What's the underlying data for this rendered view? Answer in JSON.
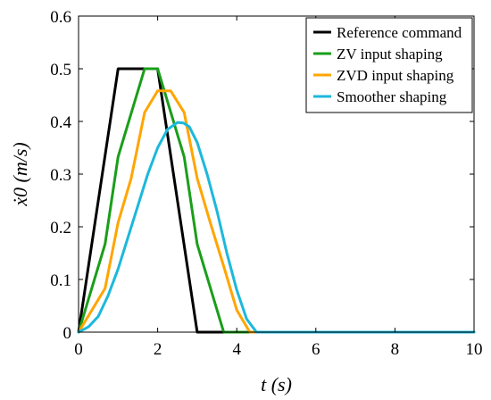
{
  "chart_data": {
    "type": "line",
    "title": "",
    "xlabel": "t (s)",
    "ylabel": "ẋ0 (m/s)",
    "xlim": [
      0,
      10
    ],
    "ylim": [
      0,
      0.6
    ],
    "xticks": [
      "0",
      "2",
      "4",
      "6",
      "8",
      "10"
    ],
    "yticks": [
      "0",
      "0.1",
      "0.2",
      "0.3",
      "0.4",
      "0.5",
      "0.6"
    ],
    "grid": false,
    "legend_position": "top-right",
    "series": [
      {
        "name": "Reference command",
        "color": "#000000",
        "x": [
          0,
          1.0,
          2.0,
          3.0,
          10
        ],
        "y": [
          0,
          0.5,
          0.5,
          0,
          0
        ]
      },
      {
        "name": "ZV input shaping",
        "color": "#1a9e1a",
        "x": [
          0,
          0.67,
          1.0,
          1.67,
          2.0,
          2.67,
          3.0,
          3.67,
          10
        ],
        "y": [
          0,
          0.167,
          0.333,
          0.5,
          0.5,
          0.333,
          0.167,
          0,
          0
        ]
      },
      {
        "name": "ZVD input shaping",
        "color": "#ffa500",
        "x": [
          0,
          0.67,
          1.0,
          1.33,
          1.67,
          2.0,
          2.33,
          2.67,
          3.0,
          3.33,
          3.67,
          4.0,
          4.33,
          10
        ],
        "y": [
          0,
          0.083,
          0.208,
          0.292,
          0.417,
          0.458,
          0.458,
          0.417,
          0.292,
          0.208,
          0.125,
          0.042,
          0,
          0
        ]
      },
      {
        "name": "Smoother shaping",
        "color": "#1cb8dc",
        "x": [
          0,
          0.25,
          0.5,
          0.75,
          1.0,
          1.25,
          1.5,
          1.75,
          2.0,
          2.25,
          2.5,
          2.65,
          2.8,
          3.0,
          3.25,
          3.5,
          3.75,
          4.0,
          4.25,
          4.5,
          10
        ],
        "y": [
          0,
          0.01,
          0.03,
          0.07,
          0.12,
          0.18,
          0.24,
          0.3,
          0.35,
          0.385,
          0.398,
          0.397,
          0.39,
          0.36,
          0.3,
          0.23,
          0.15,
          0.08,
          0.025,
          0,
          0
        ]
      }
    ]
  }
}
